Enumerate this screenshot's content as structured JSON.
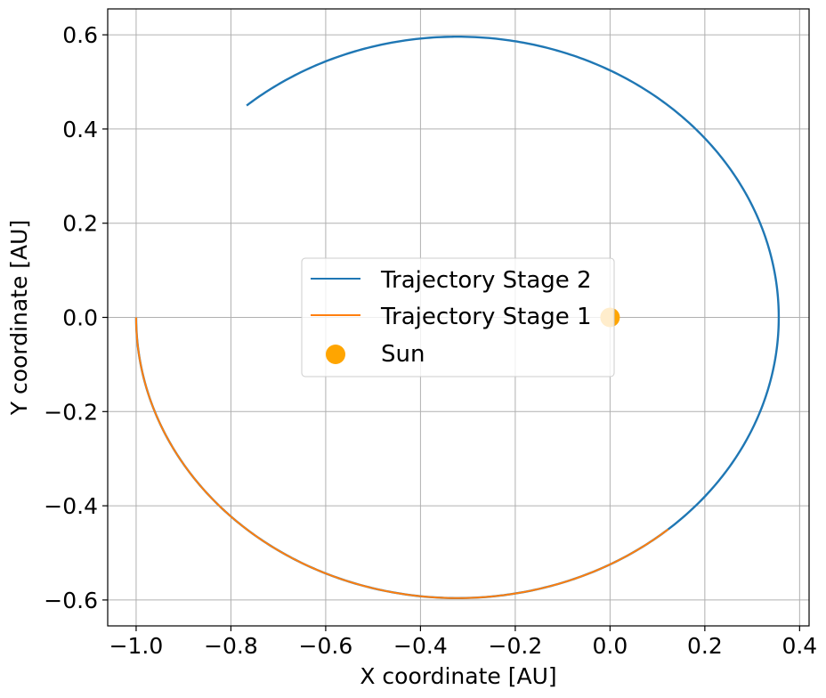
{
  "chart_data": {
    "type": "line",
    "title": "",
    "xlabel": "X coordinate [AU]",
    "ylabel": "Y coordinate [AU]",
    "xlim": [
      -1.06,
      0.42
    ],
    "ylim": [
      -0.655,
      0.655
    ],
    "x_ticks": [
      -1.0,
      -0.8,
      -0.6,
      -0.4,
      -0.2,
      0.0,
      0.2,
      0.4
    ],
    "x_tick_labels": [
      "−1.0",
      "−0.8",
      "−0.6",
      "−0.4",
      "−0.2",
      "0.0",
      "0.2",
      "0.4"
    ],
    "y_ticks": [
      0.6,
      0.4,
      0.2,
      0.0,
      -0.2,
      -0.4,
      -0.6
    ],
    "y_tick_labels": [
      "0.6",
      "0.4",
      "0.2",
      "0.0",
      "−0.2",
      "−0.4",
      "−0.6"
    ],
    "grid": true,
    "legend_position": "center",
    "series": [
      {
        "name": "Trajectory Stage 2",
        "kind": "line",
        "color": "#1f77b4",
        "shape": "ellipse",
        "center_x": -0.322,
        "center_y": 0.0,
        "semi_axis_x": 0.678,
        "semi_axis_y": 0.596,
        "theta_start_deg": 180,
        "theta_end_deg": 491
      },
      {
        "name": "Trajectory Stage 1",
        "kind": "line",
        "color": "#ff7f0e",
        "shape": "ellipse",
        "center_x": -0.322,
        "center_y": 0.0,
        "semi_axis_x": 0.678,
        "semi_axis_y": 0.596,
        "theta_start_deg": 180,
        "theta_end_deg": 311
      },
      {
        "name": "Sun",
        "kind": "scatter",
        "color": "#ffa500",
        "x": [
          0.0
        ],
        "y": [
          0.0
        ]
      }
    ]
  }
}
